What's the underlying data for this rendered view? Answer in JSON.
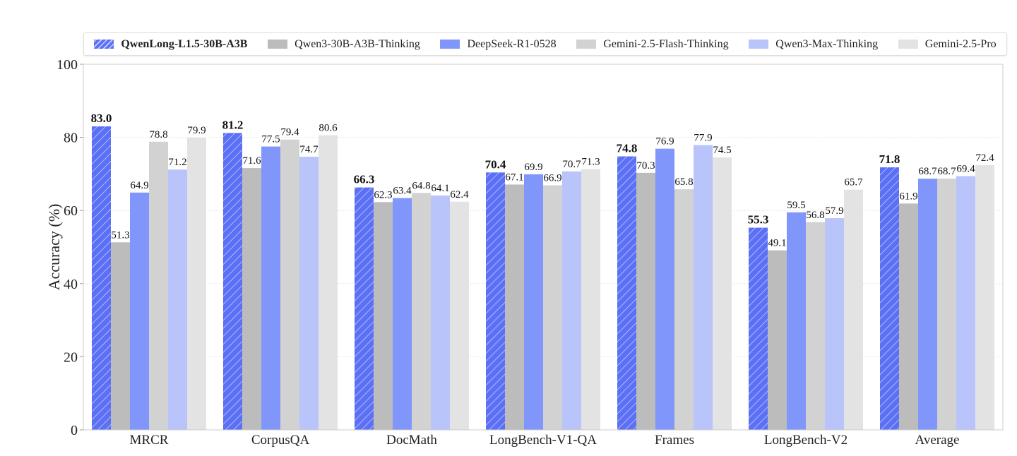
{
  "chart_data": {
    "type": "bar",
    "title": "",
    "xlabel": "",
    "ylabel": "Accuracy (%)",
    "ylim": [
      0,
      100
    ],
    "yticks": [
      "0",
      "20",
      "40",
      "60",
      "80",
      "100"
    ],
    "grid": true,
    "legend_placement": "top",
    "categories": [
      "MRCR",
      "CorpusQA",
      "DocMath",
      "LongBench-V1-QA",
      "Frames",
      "LongBench-V2",
      "Average"
    ],
    "series": [
      {
        "name": "QwenLong-L1.5-30B-A3B",
        "color": "#5b70f5",
        "hatched": true,
        "bold": true,
        "values": [
          83.0,
          81.2,
          66.3,
          70.4,
          74.8,
          55.3,
          71.8
        ]
      },
      {
        "name": "Qwen3-30B-A3B-Thinking",
        "color": "#bcbcbc",
        "values": [
          51.3,
          71.6,
          62.3,
          67.1,
          70.3,
          49.1,
          61.9
        ]
      },
      {
        "name": "DeepSeek-R1-0528",
        "color": "#8196fa",
        "values": [
          64.9,
          77.5,
          63.4,
          69.9,
          76.9,
          59.5,
          68.7
        ]
      },
      {
        "name": "Gemini-2.5-Flash-Thinking",
        "color": "#d2d2d2",
        "values": [
          78.8,
          79.4,
          64.8,
          66.9,
          65.8,
          56.8,
          68.7
        ]
      },
      {
        "name": "Qwen3-Max-Thinking",
        "color": "#b9c4fb",
        "values": [
          71.2,
          74.7,
          64.1,
          70.7,
          77.9,
          57.9,
          69.4
        ]
      },
      {
        "name": "Gemini-2.5-Pro",
        "color": "#e3e3e3",
        "values": [
          79.9,
          80.6,
          62.4,
          71.3,
          74.5,
          65.7,
          72.4
        ]
      }
    ]
  }
}
